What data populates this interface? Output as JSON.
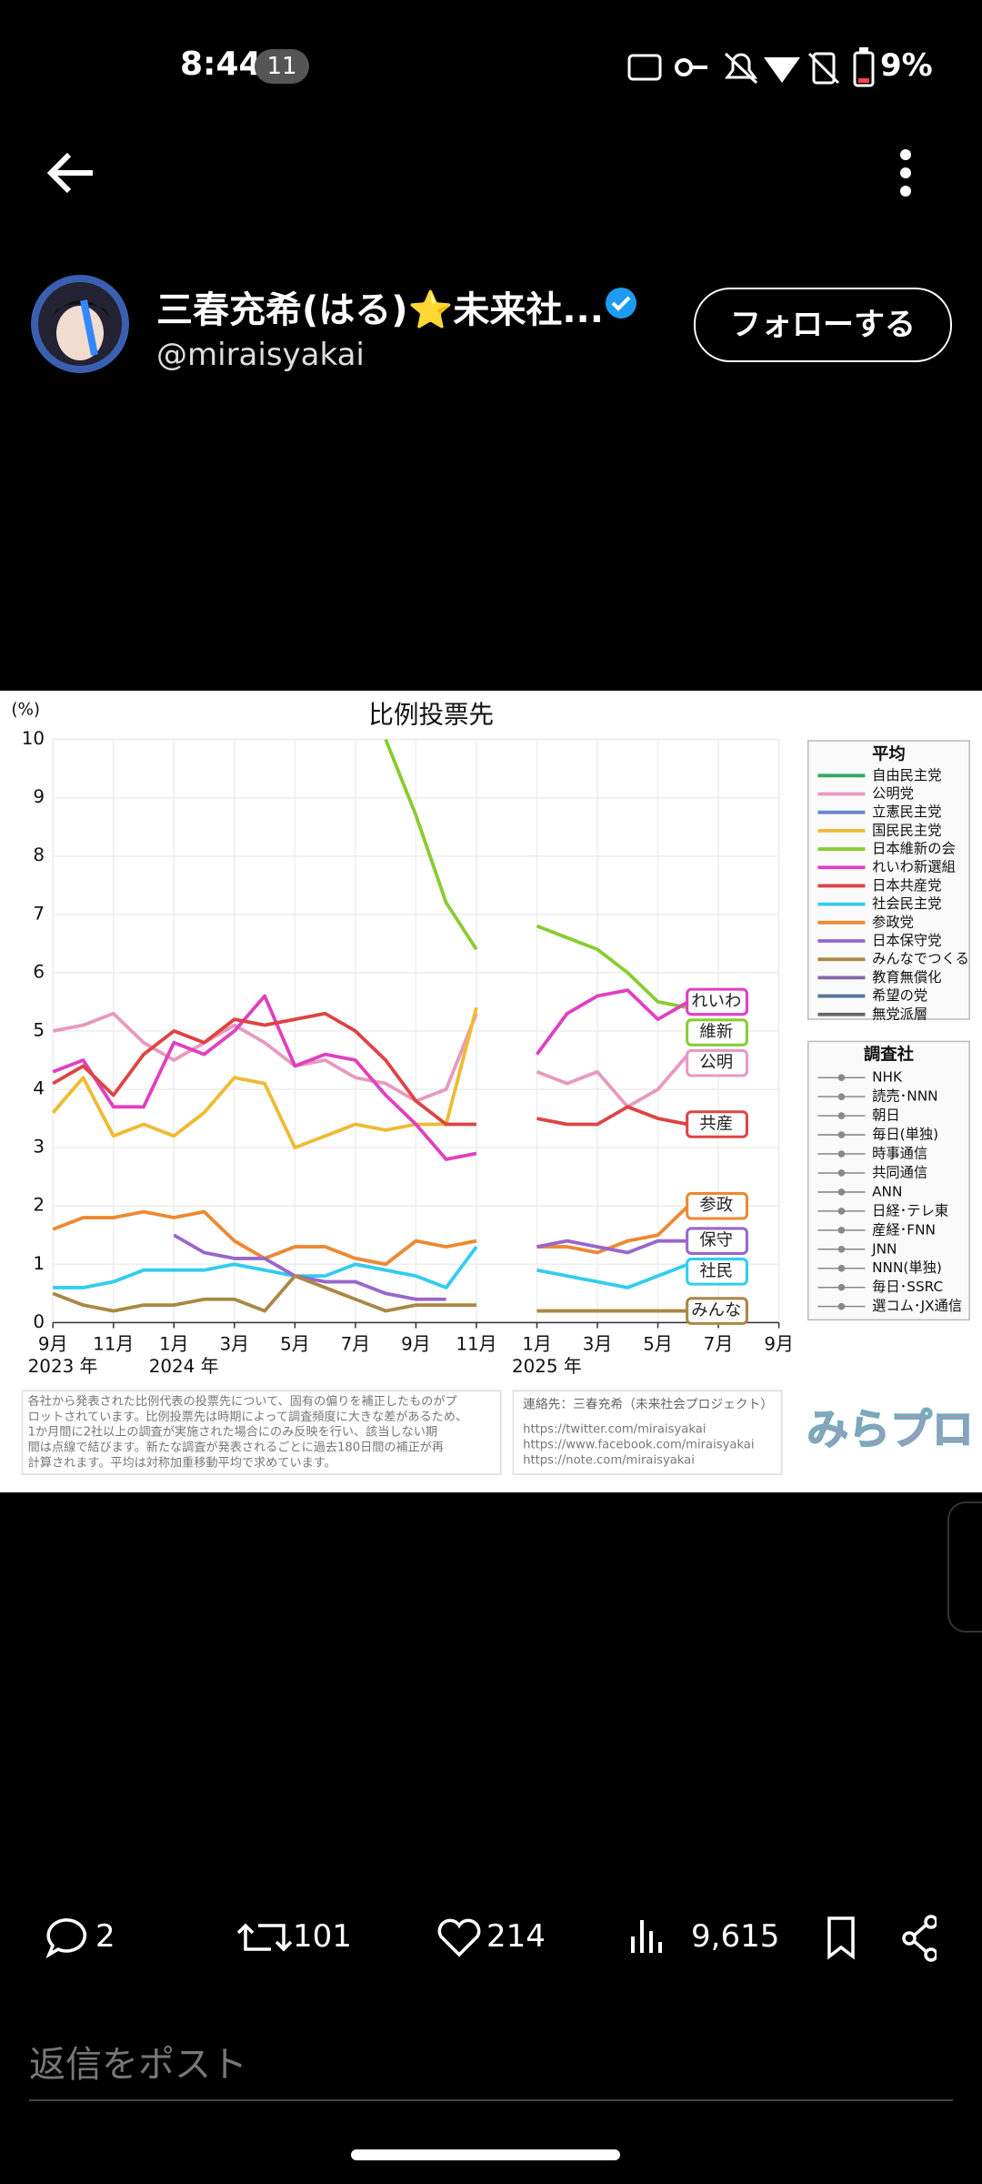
{
  "status_bar": {
    "time": "8:44",
    "notifications": "11",
    "battery": "9%"
  },
  "post": {
    "author": "三春充希(はる)⭐未来社...",
    "handle": "@miraisyakai",
    "follow": "フォローする",
    "stats": {
      "replies": "2",
      "reposts": "101",
      "likes": "214",
      "views": "9,615"
    },
    "reply_placeholder": "返信をポスト"
  },
  "chart_data": {
    "type": "line",
    "title": "比例投票先",
    "y_unit": "(%)",
    "x": [
      "2023-09",
      "2023-10",
      "2023-11",
      "2023-12",
      "2024-01",
      "2024-02",
      "2024-03",
      "2024-04",
      "2024-05",
      "2024-06",
      "2024-07",
      "2024-08",
      "2024-09",
      "2024-10",
      "2024-11",
      "2024-12",
      "2025-01",
      "2025-02",
      "2025-03",
      "2025-04",
      "2025-05",
      "2025-06"
    ],
    "xlim": [
      "2023-09",
      "2025-09"
    ],
    "xticks": [
      {
        "value": "2023-09",
        "label": "9月"
      },
      {
        "value": "2023-11",
        "label": "11月"
      },
      {
        "value": "2024-01",
        "label": "1月"
      },
      {
        "value": "2024-03",
        "label": "3月"
      },
      {
        "value": "2024-05",
        "label": "5月"
      },
      {
        "value": "2024-07",
        "label": "7月"
      },
      {
        "value": "2024-09",
        "label": "9月"
      },
      {
        "value": "2024-11",
        "label": "11月"
      },
      {
        "value": "2025-01",
        "label": "1月"
      },
      {
        "value": "2025-03",
        "label": "3月"
      },
      {
        "value": "2025-05",
        "label": "5月"
      },
      {
        "value": "2025-07",
        "label": "7月"
      },
      {
        "value": "2025-09",
        "label": "9月"
      }
    ],
    "year_labels": [
      {
        "value": "2023-09",
        "label": "2023 年"
      },
      {
        "value": "2024-01",
        "label": "2024 年"
      },
      {
        "value": "2025-01",
        "label": "2025 年"
      }
    ],
    "ylim": [
      0,
      10
    ],
    "yticks": [
      0,
      1,
      2,
      3,
      4,
      5,
      6,
      7,
      8,
      9,
      10
    ],
    "grid": true,
    "legend_title": "平均",
    "series": [
      {
        "name": "自由民主党",
        "color": "#33aa66",
        "values": [
          null,
          null,
          null,
          null,
          null,
          null,
          null,
          null,
          null,
          null,
          null,
          null,
          null,
          null,
          null,
          null,
          null,
          null,
          null,
          null,
          null,
          null
        ]
      },
      {
        "name": "公明党",
        "label": "公明",
        "color": "#e899c0",
        "values": [
          5.0,
          5.1,
          5.3,
          4.8,
          4.5,
          4.8,
          5.1,
          4.8,
          4.4,
          4.5,
          4.2,
          4.1,
          3.8,
          4.0,
          5.3,
          null,
          4.3,
          4.1,
          4.3,
          3.7,
          4.0,
          4.6
        ]
      },
      {
        "name": "立憲民主党",
        "color": "#6688cc",
        "values": [
          null,
          null,
          null,
          null,
          null,
          null,
          null,
          null,
          null,
          null,
          null,
          null,
          null,
          null,
          null,
          null,
          null,
          null,
          null,
          null,
          null,
          null
        ]
      },
      {
        "name": "国民民主党",
        "color": "#eebb33",
        "values": [
          3.6,
          4.2,
          3.2,
          3.4,
          3.2,
          3.6,
          4.2,
          4.1,
          3.0,
          3.2,
          3.4,
          3.3,
          3.4,
          3.4,
          5.4,
          null,
          null,
          null,
          null,
          null,
          null,
          null
        ]
      },
      {
        "name": "日本維新の会",
        "label": "維新",
        "color": "#88cc33",
        "values": [
          null,
          null,
          null,
          null,
          null,
          null,
          null,
          null,
          null,
          null,
          null,
          10,
          8.7,
          7.2,
          6.4,
          null,
          6.8,
          6.6,
          6.4,
          6.0,
          5.5,
          5.4
        ]
      },
      {
        "name": "れいわ新選組",
        "label": "れいわ",
        "color": "#e040c0",
        "values": [
          4.3,
          4.5,
          3.7,
          3.7,
          4.8,
          4.6,
          5.0,
          5.6,
          4.4,
          4.6,
          4.5,
          3.9,
          3.4,
          2.8,
          2.9,
          null,
          4.6,
          5.3,
          5.6,
          5.7,
          5.2,
          5.5
        ]
      },
      {
        "name": "日本共産党",
        "label": "共産",
        "color": "#dd4444",
        "values": [
          4.1,
          4.4,
          3.9,
          4.6,
          5.0,
          4.8,
          5.2,
          5.1,
          5.2,
          5.3,
          5.0,
          4.5,
          3.8,
          3.4,
          3.4,
          null,
          3.5,
          3.4,
          3.4,
          3.7,
          3.5,
          3.4
        ]
      },
      {
        "name": "社会民主党",
        "label": "社民",
        "color": "#33ccee",
        "values": [
          0.6,
          0.6,
          0.7,
          0.9,
          0.9,
          0.9,
          1.0,
          0.9,
          0.8,
          0.8,
          1.0,
          0.9,
          0.8,
          0.6,
          1.3,
          null,
          0.9,
          0.8,
          0.7,
          0.6,
          0.8,
          1.0
        ]
      },
      {
        "name": "参政党",
        "label": "参政",
        "color": "#ee8833",
        "values": [
          1.6,
          1.8,
          1.8,
          1.9,
          1.8,
          1.9,
          1.4,
          1.1,
          1.3,
          1.3,
          1.1,
          1.0,
          1.4,
          1.3,
          1.4,
          null,
          1.3,
          1.3,
          1.2,
          1.4,
          1.5,
          2.0
        ]
      },
      {
        "name": "日本保守党",
        "label": "保守",
        "color": "#9966cc",
        "values": [
          null,
          null,
          null,
          null,
          1.5,
          1.2,
          1.1,
          1.1,
          0.8,
          0.7,
          0.7,
          0.5,
          0.4,
          0.4,
          null,
          null,
          1.3,
          1.4,
          1.3,
          1.2,
          1.4,
          1.4
        ]
      },
      {
        "name": "みんなでつくる",
        "label": "みんな",
        "color": "#aa8844",
        "values": [
          0.5,
          0.3,
          0.2,
          0.3,
          0.3,
          0.4,
          0.4,
          0.2,
          0.8,
          0.6,
          0.4,
          0.2,
          0.3,
          0.3,
          0.3,
          null,
          0.2,
          0.2,
          0.2,
          0.2,
          0.2,
          0.2
        ]
      },
      {
        "name": "教育無償化",
        "color": "#8866aa",
        "values": [
          null,
          null,
          null,
          null,
          null,
          null,
          null,
          null,
          null,
          null,
          null,
          null,
          null,
          null,
          null,
          null,
          null,
          null,
          null,
          null,
          null,
          null
        ]
      },
      {
        "name": "希望の党",
        "color": "#557799",
        "values": [
          null,
          null,
          null,
          null,
          null,
          null,
          null,
          null,
          null,
          null,
          null,
          null,
          null,
          null,
          null,
          null,
          null,
          null,
          null,
          null,
          null,
          null
        ]
      },
      {
        "name": "無党派層",
        "color": "#666666",
        "values": [
          null,
          null,
          null,
          null,
          null,
          null,
          null,
          null,
          null,
          null,
          null,
          null,
          null,
          null,
          null,
          null,
          null,
          null,
          null,
          null,
          null,
          null
        ]
      }
    ],
    "pollsters_title": "調査社",
    "pollsters": [
      "NHK",
      "読売･NNN",
      "朝日",
      "毎日(単独)",
      "時事通信",
      "共同通信",
      "ANN",
      "日経･テレ東",
      "産経･FNN",
      "JNN",
      "NNN(単独)",
      "毎日･SSRC",
      "選コム･JX通信"
    ],
    "note": [
      "各社から発表された比例代表の投票先について、固有の偏りを補正したものがプ",
      "ロットされています。比例投票先は時期によって調査頻度に大きな差があるため、",
      "1か月間に2社以上の調査が実施された場合にのみ反映を行い、該当しない期",
      "間は点線で結びます。新たな調査が発表されるごとに過去180日間の補正が再",
      "計算されます。平均は対称加重移動平均で求めています。"
    ],
    "contact": "連絡先：三春充希（未来社会プロジェクト）",
    "urls": [
      "https://twitter.com/miraisyakai",
      "https://www.facebook.com/miraisyakai",
      "https://note.com/miraisyakai"
    ],
    "logo": "みらプロ"
  }
}
